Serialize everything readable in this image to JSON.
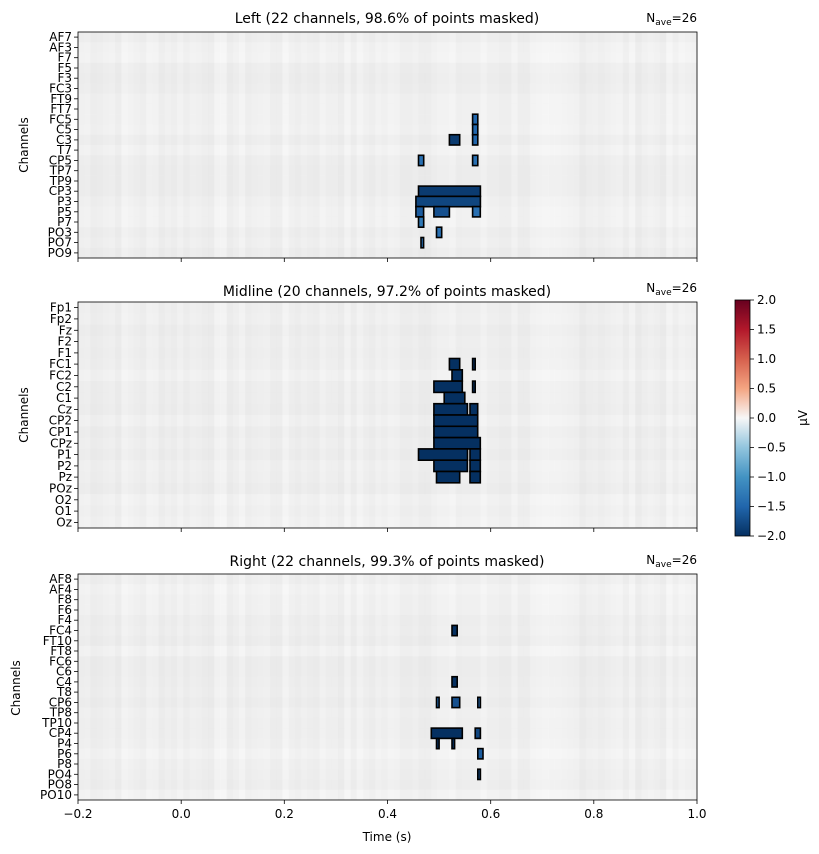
{
  "chart_data": [
    {
      "type": "heatmap",
      "title": "Left (22 channels, 98.6% of points masked)",
      "n_ave": "26",
      "channels": [
        "AF7",
        "AF3",
        "F7",
        "F5",
        "F3",
        "FC3",
        "FT9",
        "FT7",
        "FC5",
        "C5",
        "C3",
        "T7",
        "CP5",
        "TP7",
        "TP9",
        "CP3",
        "P3",
        "P5",
        "P7",
        "PO3",
        "PO7",
        "PO9"
      ],
      "ylabel": "Channels",
      "xlabel": "",
      "xlim": [
        -0.2,
        1.0
      ],
      "significant_clusters": [
        {
          "channel": "FC5",
          "t_start": 0.565,
          "t_end": 0.575,
          "value": -1.5
        },
        {
          "channel": "C5",
          "t_start": 0.565,
          "t_end": 0.575,
          "value": -1.5
        },
        {
          "channel": "C3",
          "t_start": 0.52,
          "t_end": 0.54,
          "value": -1.9
        },
        {
          "channel": "C3",
          "t_start": 0.565,
          "t_end": 0.575,
          "value": -1.5
        },
        {
          "channel": "CP5",
          "t_start": 0.46,
          "t_end": 0.47,
          "value": -1.4
        },
        {
          "channel": "CP5",
          "t_start": 0.565,
          "t_end": 0.575,
          "value": -1.4
        },
        {
          "channel": "CP3",
          "t_start": 0.46,
          "t_end": 0.58,
          "value": -1.9
        },
        {
          "channel": "P3",
          "t_start": 0.455,
          "t_end": 0.58,
          "value": -1.8
        },
        {
          "channel": "P5",
          "t_start": 0.455,
          "t_end": 0.47,
          "value": -1.6
        },
        {
          "channel": "P5",
          "t_start": 0.49,
          "t_end": 0.52,
          "value": -1.7
        },
        {
          "channel": "P5",
          "t_start": 0.565,
          "t_end": 0.58,
          "value": -1.4
        },
        {
          "channel": "P7",
          "t_start": 0.46,
          "t_end": 0.47,
          "value": -1.3
        },
        {
          "channel": "PO3",
          "t_start": 0.495,
          "t_end": 0.505,
          "value": -1.4
        },
        {
          "channel": "PO7",
          "t_start": 0.465,
          "t_end": 0.47,
          "value": -1.4
        }
      ]
    },
    {
      "type": "heatmap",
      "title": "Midline (20 channels, 97.2% of points masked)",
      "n_ave": "26",
      "channels": [
        "Fp1",
        "Fp2",
        "Fz",
        "F2",
        "F1",
        "FC1",
        "FC2",
        "C2",
        "C1",
        "Cz",
        "CP2",
        "CP1",
        "CPz",
        "P1",
        "P2",
        "Pz",
        "POz",
        "O2",
        "O1",
        "Oz"
      ],
      "ylabel": "Channels",
      "xlabel": "",
      "xlim": [
        -0.2,
        1.0
      ],
      "significant_clusters": [
        {
          "channel": "FC1",
          "t_start": 0.52,
          "t_end": 0.54,
          "value": -2.0
        },
        {
          "channel": "FC1",
          "t_start": 0.565,
          "t_end": 0.57,
          "value": -2.0
        },
        {
          "channel": "FC2",
          "t_start": 0.525,
          "t_end": 0.545,
          "value": -2.0
        },
        {
          "channel": "C2",
          "t_start": 0.49,
          "t_end": 0.545,
          "value": -2.0
        },
        {
          "channel": "C2",
          "t_start": 0.565,
          "t_end": 0.57,
          "value": -2.0
        },
        {
          "channel": "C1",
          "t_start": 0.51,
          "t_end": 0.55,
          "value": -2.0
        },
        {
          "channel": "Cz",
          "t_start": 0.49,
          "t_end": 0.555,
          "value": -2.0
        },
        {
          "channel": "Cz",
          "t_start": 0.56,
          "t_end": 0.575,
          "value": -2.0
        },
        {
          "channel": "CP2",
          "t_start": 0.49,
          "t_end": 0.575,
          "value": -2.0
        },
        {
          "channel": "CP1",
          "t_start": 0.49,
          "t_end": 0.575,
          "value": -2.0
        },
        {
          "channel": "CPz",
          "t_start": 0.49,
          "t_end": 0.58,
          "value": -2.0
        },
        {
          "channel": "P1",
          "t_start": 0.46,
          "t_end": 0.555,
          "value": -2.0
        },
        {
          "channel": "P1",
          "t_start": 0.56,
          "t_end": 0.58,
          "value": -2.0
        },
        {
          "channel": "P2",
          "t_start": 0.49,
          "t_end": 0.555,
          "value": -2.0
        },
        {
          "channel": "P2",
          "t_start": 0.56,
          "t_end": 0.58,
          "value": -2.0
        },
        {
          "channel": "Pz",
          "t_start": 0.495,
          "t_end": 0.54,
          "value": -2.0
        },
        {
          "channel": "Pz",
          "t_start": 0.56,
          "t_end": 0.58,
          "value": -2.0
        }
      ]
    },
    {
      "type": "heatmap",
      "title": "Right (22 channels, 99.3% of points masked)",
      "n_ave": "26",
      "channels": [
        "AF8",
        "AF4",
        "F8",
        "F6",
        "F4",
        "FC4",
        "FT10",
        "FT8",
        "FC6",
        "C6",
        "C4",
        "T8",
        "CP6",
        "TP8",
        "TP10",
        "CP4",
        "P4",
        "P6",
        "P8",
        "PO4",
        "PO8",
        "PO10"
      ],
      "ylabel": "Channels",
      "xlabel": "Time (s)",
      "xlim": [
        -0.2,
        1.0
      ],
      "xticks": [
        "−0.2",
        "0.0",
        "0.2",
        "0.4",
        "0.6",
        "0.8",
        "1.0"
      ],
      "significant_clusters": [
        {
          "channel": "FC4",
          "t_start": 0.525,
          "t_end": 0.535,
          "value": -2.0
        },
        {
          "channel": "C4",
          "t_start": 0.525,
          "t_end": 0.535,
          "value": -2.0
        },
        {
          "channel": "CP6",
          "t_start": 0.495,
          "t_end": 0.5,
          "value": -1.5
        },
        {
          "channel": "CP6",
          "t_start": 0.525,
          "t_end": 0.54,
          "value": -1.7
        },
        {
          "channel": "CP6",
          "t_start": 0.575,
          "t_end": 0.58,
          "value": -1.5
        },
        {
          "channel": "CP4",
          "t_start": 0.485,
          "t_end": 0.545,
          "value": -2.0
        },
        {
          "channel": "CP4",
          "t_start": 0.57,
          "t_end": 0.58,
          "value": -1.8
        },
        {
          "channel": "P4",
          "t_start": 0.495,
          "t_end": 0.5,
          "value": -2.0
        },
        {
          "channel": "P4",
          "t_start": 0.525,
          "t_end": 0.53,
          "value": -2.0
        },
        {
          "channel": "P6",
          "t_start": 0.575,
          "t_end": 0.585,
          "value": -1.6
        },
        {
          "channel": "PO4",
          "t_start": 0.575,
          "t_end": 0.58,
          "value": -1.8
        }
      ]
    }
  ],
  "colorbar": {
    "label": "µV",
    "range": [
      -2.0,
      2.0
    ],
    "ticks": [
      "2.0",
      "1.5",
      "1.0",
      "0.5",
      "0.0",
      "−0.5",
      "−1.0",
      "−1.5",
      "−2.0"
    ],
    "colormap": "RdBu_r"
  }
}
